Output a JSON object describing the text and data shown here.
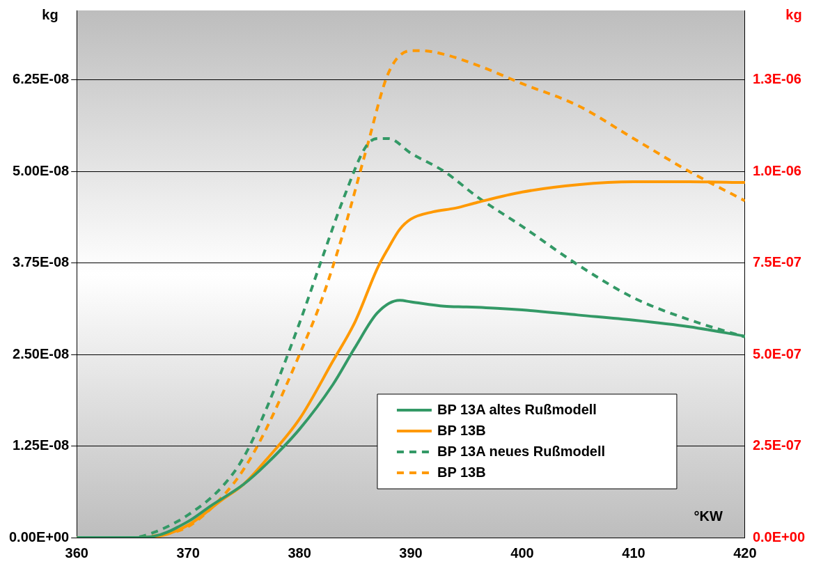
{
  "chart_data": {
    "type": "line",
    "xlabel": "°KW",
    "ylabel": "kg",
    "y2label": "kg",
    "xlim": [
      360,
      420
    ],
    "xticks": [
      360,
      370,
      380,
      390,
      400,
      410,
      420
    ],
    "ylim": [
      0,
      7.2e-08
    ],
    "yticks": [
      {
        "value": 0,
        "label": "0.00E+00"
      },
      {
        "value": 1.25e-08,
        "label": "1.25E-08"
      },
      {
        "value": 2.5e-08,
        "label": "2.50E-08"
      },
      {
        "value": 3.75e-08,
        "label": "3.75E-08"
      },
      {
        "value": 5e-08,
        "label": "5.00E-08"
      },
      {
        "value": 6.25e-08,
        "label": "6.25E-08"
      }
    ],
    "y2lim": [
      0,
      1.44e-06
    ],
    "y2ticks": [
      {
        "value": 0,
        "label": "0.0E+00"
      },
      {
        "value": 2.5e-07,
        "label": "2.5E-07"
      },
      {
        "value": 5e-07,
        "label": "5.0E-07"
      },
      {
        "value": 7.5e-07,
        "label": "7.5E-07"
      },
      {
        "value": 1e-06,
        "label": "1.0E-06"
      },
      {
        "value": 1.25e-06,
        "label": "1.3E-06"
      }
    ],
    "grid": "y",
    "legend": "bottom right",
    "marker": "none",
    "series": [
      {
        "name": "BP 13A altes Rußmodell",
        "color": "#339966",
        "line_style": "solid",
        "x": [
          360,
          365,
          367,
          370,
          372,
          375,
          377,
          380,
          383,
          385,
          387,
          389,
          390,
          393,
          395,
          398,
          400,
          405,
          410,
          415,
          420
        ],
        "values": [
          0,
          0,
          2e-10,
          2.2e-09,
          4.3e-09,
          7.3e-09,
          1e-08,
          1.48e-08,
          2.09e-08,
          2.6e-08,
          3.07e-08,
          3.24e-08,
          3.22e-08,
          3.16e-08,
          3.15e-08,
          3.13e-08,
          3.11e-08,
          3.04e-08,
          2.97e-08,
          2.88e-08,
          2.75e-08
        ]
      },
      {
        "name": "BP 13B",
        "color": "#ff9900",
        "line_style": "solid",
        "x": [
          360,
          365,
          367,
          370,
          373,
          375,
          377,
          380,
          383,
          385,
          387,
          388,
          389,
          390,
          392,
          394,
          396,
          400,
          405,
          410,
          415,
          420
        ],
        "values": [
          0,
          0,
          1e-10,
          1.7e-09,
          5.1e-09,
          7.3e-09,
          1.06e-08,
          1.62e-08,
          2.41e-08,
          2.95e-08,
          3.68e-08,
          3.96e-08,
          4.21e-08,
          4.35e-08,
          4.45e-08,
          4.5e-08,
          4.58e-08,
          4.72e-08,
          4.82e-08,
          4.86e-08,
          4.86e-08,
          4.85e-08
        ]
      },
      {
        "name": "BP 13A neues Rußmodell",
        "color": "#339966",
        "line_style": "dashed",
        "axis": "y2",
        "x": [
          360,
          365,
          367,
          370,
          373,
          375,
          377,
          380,
          382,
          384,
          386,
          387,
          388,
          390,
          393,
          396,
          400,
          405,
          410,
          415,
          420
        ],
        "values": [
          0,
          0,
          1.5e-08,
          6.2e-08,
          1.37e-07,
          2.2e-07,
          3.5e-07,
          5.86e-07,
          7.6e-07,
          9.3e-07,
          1.07e-06,
          1.09e-06,
          1.09e-06,
          1.05e-06,
          1e-06,
          9.3e-07,
          8.5e-07,
          7.45e-07,
          6.55e-07,
          5.95e-07,
          5.48e-07
        ]
      },
      {
        "name": "BP 13B",
        "color": "#ff9900",
        "line_style": "dashed",
        "axis": "y2",
        "x": [
          360,
          365,
          367,
          370,
          373,
          375,
          377,
          380,
          382,
          384,
          386,
          388,
          390,
          391,
          393,
          396,
          400,
          405,
          410,
          415,
          420
        ],
        "values": [
          0,
          0,
          5e-09,
          3e-08,
          1.09e-07,
          1.87e-07,
          2.96e-07,
          5e-07,
          6.5e-07,
          8.4e-07,
          1.06e-06,
          1.27e-06,
          1.33e-06,
          1.33e-06,
          1.32e-06,
          1.29e-06,
          1.24e-06,
          1.18e-06,
          1.09e-06,
          1e-06,
          9.2e-07
        ]
      }
    ]
  }
}
